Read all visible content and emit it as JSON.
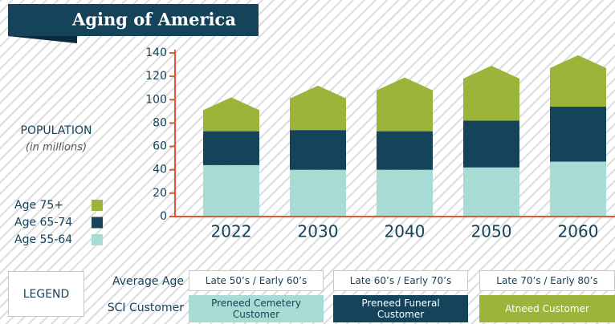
{
  "chart_data": {
    "type": "stacked_bar",
    "title": "Aging of America",
    "y_label": "POPULATION",
    "y_sublabel": "(in millions)",
    "categories": [
      "2022",
      "2030",
      "2040",
      "2050",
      "2060"
    ],
    "series": [
      {
        "name": "Age 55-64",
        "color": "#a8dbd3",
        "values": [
          44,
          40,
          40,
          42,
          47
        ]
      },
      {
        "name": "Age 65-74",
        "color": "#14435a",
        "values": [
          29,
          34,
          33,
          40,
          47
        ]
      },
      {
        "name": "Age 75+",
        "color": "#9bb53a",
        "values": [
          29,
          38,
          46,
          47,
          44
        ]
      }
    ],
    "ylim": [
      0,
      140
    ],
    "yticks": [
      0,
      20,
      40,
      60,
      80,
      100,
      120,
      140
    ],
    "axis_color": "#e0583a"
  },
  "legend_table": {
    "title": "LEGEND",
    "rows": [
      {
        "label": "Average Age",
        "cells": [
          "Late 50’s / Early 60’s",
          "Late 60’s / Early 70’s",
          "Late 70’s / Early 80’s"
        ]
      },
      {
        "label": "SCI Customer",
        "cells": [
          "Preneed Cemetery Customer",
          "Preneed Funeral Customer",
          "Atneed Customer"
        ]
      }
    ]
  }
}
